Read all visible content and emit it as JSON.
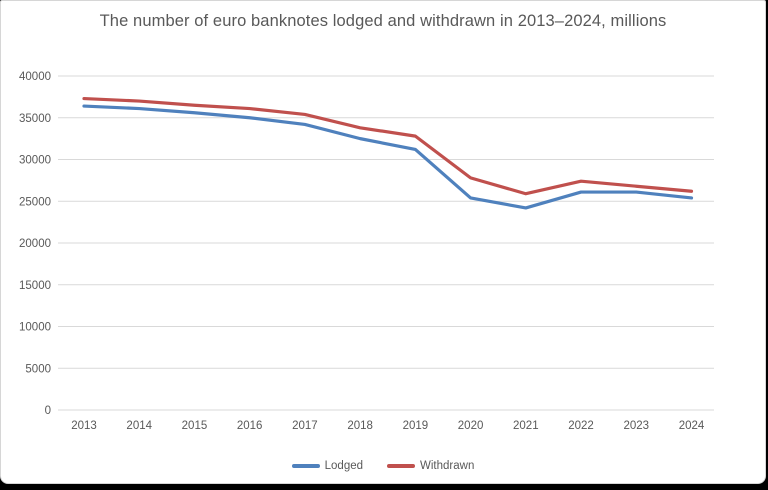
{
  "window": {
    "background": "#ffffff",
    "sheet_border": "#d6d6d6",
    "frame_color": "#000000"
  },
  "chart_data": {
    "type": "line",
    "title": "The number of euro banknotes lodged and withdrawn in 2013–2024, millions",
    "categories": [
      "2013",
      "2014",
      "2015",
      "2016",
      "2017",
      "2018",
      "2019",
      "2020",
      "2021",
      "2022",
      "2023",
      "2024"
    ],
    "series": [
      {
        "name": "Lodged",
        "color": "#4F81BD",
        "values": [
          36400,
          36100,
          35600,
          35000,
          34200,
          32500,
          31200,
          25400,
          24200,
          26100,
          26100,
          25400
        ]
      },
      {
        "name": "Withdrawn",
        "color": "#C0504D",
        "values": [
          37300,
          37000,
          36500,
          36100,
          35400,
          33800,
          32800,
          27800,
          25900,
          27400,
          26800,
          26200
        ]
      }
    ],
    "xlabel": "",
    "ylabel": "",
    "ylim": [
      0,
      40000
    ],
    "ystep": 5000,
    "ytick_labels": [
      "0",
      "5000",
      "10000",
      "15000",
      "20000",
      "25000",
      "30000",
      "35000",
      "40000"
    ],
    "grid": true,
    "gridline_color": "#D9D9D9",
    "axis_label_color": "#595959",
    "title_color": "#595959",
    "legend_position": "bottom"
  }
}
